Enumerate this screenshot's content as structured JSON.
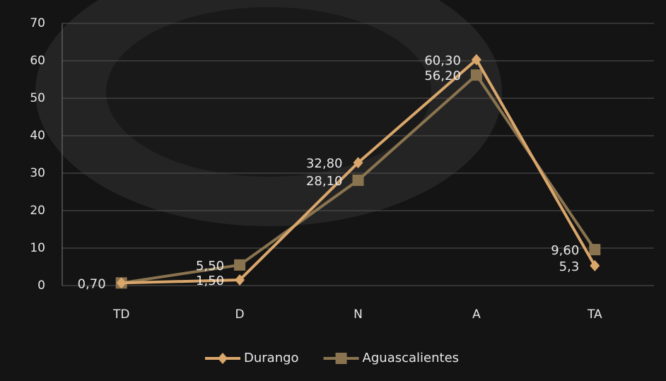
{
  "chart_data": {
    "type": "line",
    "categories": [
      "TD",
      "D",
      "N",
      "A",
      "TA"
    ],
    "series": [
      {
        "name": "Durango",
        "color": "#d9a66b",
        "marker": "diamond",
        "values": [
          0.7,
          1.5,
          32.8,
          60.3,
          5.3
        ],
        "value_labels": [
          "0,70",
          "1,50",
          "32,80",
          "60,30",
          "5,3"
        ]
      },
      {
        "name": "Aguascalientes",
        "color": "#8a7450",
        "marker": "square",
        "values": [
          0.7,
          5.5,
          28.1,
          56.2,
          9.6
        ],
        "value_labels": [
          null,
          "5,50",
          "28,10",
          "56,20",
          "9,60"
        ]
      }
    ],
    "ylim": [
      0,
      70
    ],
    "yticks": [
      0,
      10,
      20,
      30,
      40,
      50,
      60,
      70
    ],
    "grid": true,
    "legend": "bottom"
  }
}
